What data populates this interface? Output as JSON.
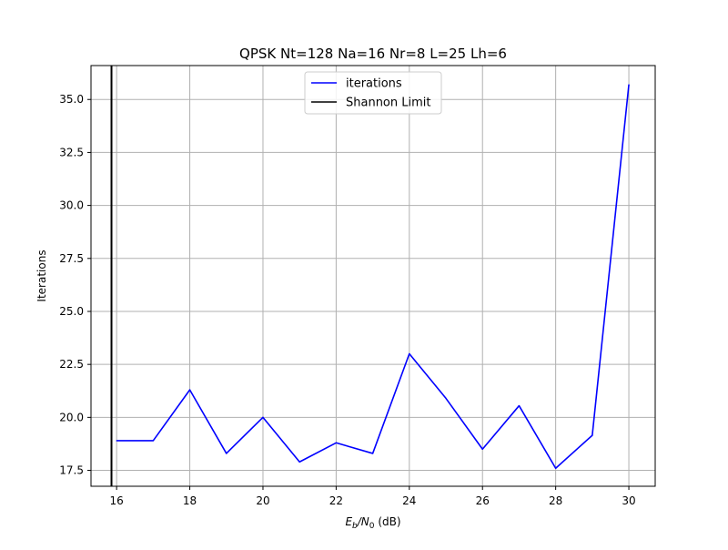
{
  "chart_data": {
    "type": "line",
    "title": "QPSK Nt=128 Na=16 Nr=8 L=25 Lh=6",
    "xlabel": {
      "main": "E",
      "sub1": "b",
      "mid": "/N",
      "sub2": "0",
      "tail": " (dB)"
    },
    "ylabel": "Iterations",
    "xlim": [
      15.3,
      30.72
    ],
    "ylim": [
      16.75,
      36.6
    ],
    "xticks": [
      16,
      18,
      20,
      22,
      24,
      26,
      28,
      30
    ],
    "xtick_labels": [
      "16",
      "18",
      "20",
      "22",
      "24",
      "26",
      "28",
      "30"
    ],
    "yticks": [
      17.5,
      20.0,
      22.5,
      25.0,
      27.5,
      30.0,
      32.5,
      35.0
    ],
    "ytick_labels": [
      "17.5",
      "20.0",
      "22.5",
      "25.0",
      "27.5",
      "30.0",
      "32.5",
      "35.0"
    ],
    "grid": true,
    "legend_position": "top-center",
    "series": [
      {
        "name": "iterations",
        "color": "#0000ff",
        "x": [
          16,
          17,
          18,
          19,
          20,
          21,
          22,
          23,
          24,
          25,
          26,
          27,
          28,
          29,
          30
        ],
        "y": [
          18.9,
          18.9,
          21.3,
          18.3,
          20.0,
          17.9,
          18.8,
          18.3,
          23.0,
          20.9,
          18.5,
          20.55,
          17.6,
          19.15,
          35.7
        ]
      }
    ],
    "vlines": [
      {
        "name": "Shannon Limit",
        "color": "#000000",
        "x": 15.86
      }
    ]
  }
}
